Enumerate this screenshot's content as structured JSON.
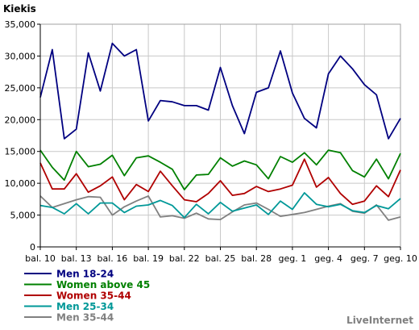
{
  "chart_data": {
    "type": "line",
    "ylabel": "Kiekis",
    "xlabel": "",
    "title": "",
    "ylim": [
      0,
      35000
    ],
    "yticks": [
      0,
      5000,
      10000,
      15000,
      20000,
      25000,
      30000,
      35000
    ],
    "ytick_labels": [
      "0",
      "5,000",
      "10,000",
      "15,000",
      "20,000",
      "25,000",
      "30,000",
      "35,000"
    ],
    "categories": [
      "bal. 10",
      "bal. 11",
      "bal. 12",
      "bal. 13",
      "bal. 14",
      "bal. 15",
      "bal. 16",
      "bal. 17",
      "bal. 18",
      "bal. 19",
      "bal. 20",
      "bal. 21",
      "bal. 22",
      "bal. 23",
      "bal. 24",
      "bal. 25",
      "bal. 26",
      "bal. 27",
      "bal. 28",
      "bal. 29",
      "bal. 30",
      "geg. 1",
      "geg. 2",
      "geg. 3",
      "geg. 4",
      "geg. 5",
      "geg. 6",
      "geg. 7",
      "geg. 8",
      "geg. 9",
      "geg. 10"
    ],
    "xtick_indices": [
      0,
      3,
      6,
      9,
      12,
      15,
      18,
      21,
      24,
      27,
      30
    ],
    "grid": true,
    "legend_placement": "bottom-left",
    "series": [
      {
        "name": "Men 18-24",
        "color": "#000080",
        "values": [
          23500,
          31000,
          17000,
          18500,
          30500,
          24500,
          32000,
          30000,
          31000,
          19800,
          23000,
          22800,
          22200,
          22200,
          21500,
          28200,
          22200,
          17800,
          24300,
          25000,
          30800,
          24200,
          20200,
          18700,
          27200,
          30000,
          28000,
          25500,
          23900,
          17000,
          20200
        ]
      },
      {
        "name": "Women above 45",
        "color": "#008000",
        "values": [
          15200,
          12500,
          10500,
          15000,
          12600,
          13000,
          14400,
          11200,
          14000,
          14300,
          13300,
          12200,
          9000,
          11300,
          11400,
          14000,
          12700,
          13500,
          12900,
          10700,
          14200,
          13300,
          14800,
          12900,
          15200,
          14800,
          12000,
          11000,
          13800,
          10700,
          14700
        ]
      },
      {
        "name": "Women 35-44",
        "color": "#b00000",
        "values": [
          13200,
          9100,
          9100,
          11500,
          8600,
          9600,
          11000,
          7400,
          9800,
          8700,
          11900,
          9600,
          7400,
          7100,
          8400,
          10400,
          8100,
          8400,
          9500,
          8700,
          9100,
          9700,
          13800,
          9400,
          10900,
          8400,
          6700,
          7200,
          9600,
          7900,
          12100
        ]
      },
      {
        "name": "Men 25-34",
        "color": "#009898",
        "values": [
          6500,
          6200,
          5200,
          6800,
          5200,
          6900,
          6900,
          5400,
          6400,
          6600,
          7300,
          6500,
          4600,
          6700,
          5200,
          7000,
          5600,
          6100,
          6600,
          5100,
          7200,
          5900,
          8500,
          6700,
          6300,
          6700,
          5700,
          5400,
          6500,
          6000,
          7600
        ]
      },
      {
        "name": "Men 35-44",
        "color": "#808080",
        "values": [
          8000,
          6200,
          6800,
          7400,
          7900,
          7800,
          5000,
          6300,
          7200,
          8000,
          4700,
          4900,
          4500,
          5300,
          4400,
          4300,
          5500,
          6600,
          6900,
          5900,
          4800,
          5100,
          5400,
          5900,
          6400,
          6800,
          5600,
          5300,
          6600,
          4200,
          4700
        ]
      }
    ]
  },
  "credit": "LiveInternet"
}
